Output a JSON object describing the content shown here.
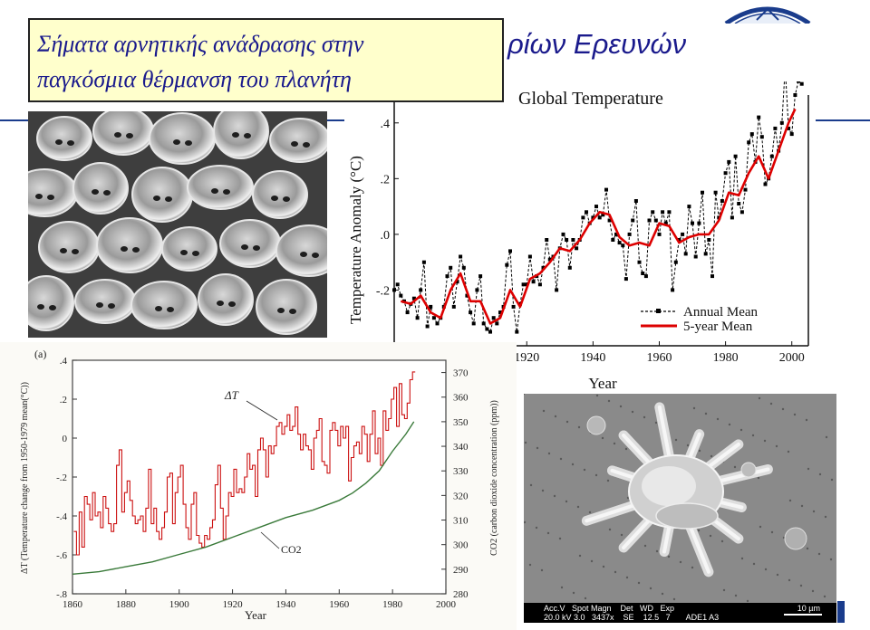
{
  "slide": {
    "title_line1": "Σήματα αρνητικής ανάδρασης στην",
    "title_line2": "παγκόσμια θέρμανση του πλανήτη",
    "header_fragment": "ρίων Ερευνών"
  },
  "photo_b_caption": {
    "row1": "Acc.V   Spot Magn    Det   WD   Exp",
    "row2": "20.0 kV 3.0   3437x    SE    12.5   7       ADE1 A3",
    "scale": "10 µm"
  },
  "colors": {
    "title_text": "#1a1a8c",
    "title_box_fill": "#ffffcc",
    "header_rule": "#1a3c8c",
    "annual_mean": "#000000",
    "five_year_mean": "#dd0000",
    "delta_t": "#cc1111",
    "co2": "#3a7a3a"
  },
  "chart_data": [
    {
      "type": "line",
      "title": "Global Temperature",
      "xlabel": "Year",
      "ylabel": "Temperature Anomaly (°C)",
      "xlim": [
        1880,
        2005
      ],
      "ylim": [
        -0.4,
        0.5
      ],
      "x_ticks": [
        1920,
        1940,
        1960,
        1980,
        2000
      ],
      "y_ticks": [
        ".4",
        ".2",
        ".0",
        "-.2"
      ],
      "grid": false,
      "legend_position": "bottom-right",
      "series": [
        {
          "name": "Annual Mean",
          "style": "dashed-square-markers",
          "x": [
            1880,
            1881,
            1882,
            1883,
            1884,
            1885,
            1886,
            1887,
            1888,
            1889,
            1890,
            1891,
            1892,
            1893,
            1894,
            1895,
            1896,
            1897,
            1898,
            1899,
            1900,
            1901,
            1902,
            1903,
            1904,
            1905,
            1906,
            1907,
            1908,
            1909,
            1910,
            1911,
            1912,
            1913,
            1914,
            1915,
            1916,
            1917,
            1918,
            1919,
            1920,
            1921,
            1922,
            1923,
            1924,
            1925,
            1926,
            1927,
            1928,
            1929,
            1930,
            1931,
            1932,
            1933,
            1934,
            1935,
            1936,
            1937,
            1938,
            1939,
            1940,
            1941,
            1942,
            1943,
            1944,
            1945,
            1946,
            1947,
            1948,
            1949,
            1950,
            1951,
            1952,
            1953,
            1954,
            1955,
            1956,
            1957,
            1958,
            1959,
            1960,
            1961,
            1962,
            1963,
            1964,
            1965,
            1966,
            1967,
            1968,
            1969,
            1970,
            1971,
            1972,
            1973,
            1974,
            1975,
            1976,
            1977,
            1978,
            1979,
            1980,
            1981,
            1982,
            1983,
            1984,
            1985,
            1986,
            1987,
            1988,
            1989,
            1990,
            1991,
            1992,
            1993,
            1994,
            1995,
            1996,
            1997,
            1998,
            1999,
            2000,
            2001,
            2002,
            2003
          ],
          "y": [
            -0.2,
            -0.18,
            -0.22,
            -0.24,
            -0.28,
            -0.25,
            -0.23,
            -0.3,
            -0.2,
            -0.1,
            -0.33,
            -0.26,
            -0.3,
            -0.32,
            -0.3,
            -0.26,
            -0.15,
            -0.12,
            -0.26,
            -0.17,
            -0.08,
            -0.12,
            -0.22,
            -0.28,
            -0.32,
            -0.2,
            -0.15,
            -0.32,
            -0.34,
            -0.35,
            -0.3,
            -0.32,
            -0.28,
            -0.26,
            -0.11,
            -0.06,
            -0.26,
            -0.35,
            -0.25,
            -0.18,
            -0.18,
            -0.08,
            -0.17,
            -0.15,
            -0.18,
            -0.12,
            -0.02,
            -0.09,
            -0.08,
            -0.2,
            -0.05,
            0.0,
            -0.02,
            -0.12,
            -0.02,
            -0.05,
            -0.02,
            0.06,
            0.08,
            0.04,
            0.06,
            0.1,
            0.06,
            0.07,
            0.16,
            0.05,
            -0.02,
            0.0,
            -0.03,
            -0.04,
            -0.16,
            0.0,
            0.05,
            0.12,
            -0.1,
            -0.14,
            -0.15,
            0.05,
            0.08,
            0.05,
            0.0,
            0.08,
            0.04,
            0.08,
            -0.2,
            -0.1,
            -0.02,
            0.0,
            -0.07,
            0.1,
            0.04,
            -0.08,
            0.04,
            0.15,
            -0.07,
            -0.02,
            -0.15,
            0.15,
            0.06,
            0.12,
            0.22,
            0.26,
            0.06,
            0.28,
            0.11,
            0.08,
            0.16,
            0.33,
            0.36,
            0.26,
            0.42,
            0.35,
            0.18,
            0.2,
            0.28,
            0.38,
            0.3,
            0.4,
            0.6,
            0.38,
            0.36,
            0.5,
            0.55,
            0.54
          ]
        },
        {
          "name": "5-year Mean",
          "style": "solid-thick",
          "x": [
            1882,
            1885,
            1888,
            1891,
            1894,
            1897,
            1900,
            1903,
            1906,
            1909,
            1912,
            1915,
            1918,
            1921,
            1924,
            1927,
            1930,
            1933,
            1936,
            1939,
            1942,
            1945,
            1948,
            1951,
            1954,
            1957,
            1960,
            1963,
            1966,
            1969,
            1972,
            1975,
            1978,
            1981,
            1984,
            1987,
            1990,
            1993,
            1996,
            1999,
            2001
          ],
          "y": [
            -0.24,
            -0.25,
            -0.22,
            -0.28,
            -0.3,
            -0.2,
            -0.14,
            -0.24,
            -0.24,
            -0.32,
            -0.3,
            -0.2,
            -0.26,
            -0.16,
            -0.14,
            -0.1,
            -0.05,
            -0.06,
            -0.02,
            0.04,
            0.08,
            0.07,
            -0.01,
            -0.04,
            -0.03,
            -0.04,
            0.04,
            0.03,
            -0.03,
            -0.01,
            0.0,
            0.0,
            0.05,
            0.15,
            0.14,
            0.22,
            0.28,
            0.2,
            0.3,
            0.4,
            0.45
          ]
        }
      ]
    },
    {
      "type": "line",
      "panel_label": "(a)",
      "xlabel": "Year",
      "ylabel": "ΔT (Temperature change from 1950-1979 mean(°C))",
      "ylabel_right": "CO2 (carbon dioxide concentration (ppm))",
      "xlim": [
        1860,
        2000
      ],
      "ylim": [
        -0.8,
        0.4
      ],
      "ylim_right": [
        280,
        375
      ],
      "x_ticks": [
        1860,
        1880,
        1900,
        1920,
        1940,
        1960,
        1980,
        2000
      ],
      "y_ticks": [
        ".4",
        ".2",
        "0",
        "-.2",
        "-.4",
        "-.6",
        "-.8"
      ],
      "y_ticks_right": [
        370,
        360,
        350,
        340,
        330,
        320,
        310,
        300,
        290,
        280
      ],
      "grid": false,
      "series": [
        {
          "name": "ΔT",
          "style": "step",
          "x": [
            1861,
            1862,
            1863,
            1864,
            1865,
            1866,
            1867,
            1868,
            1869,
            1870,
            1871,
            1872,
            1873,
            1874,
            1875,
            1876,
            1877,
            1878,
            1879,
            1880,
            1881,
            1882,
            1883,
            1884,
            1885,
            1886,
            1887,
            1888,
            1889,
            1890,
            1891,
            1892,
            1893,
            1894,
            1895,
            1896,
            1897,
            1898,
            1899,
            1900,
            1901,
            1902,
            1903,
            1904,
            1905,
            1906,
            1907,
            1908,
            1909,
            1910,
            1911,
            1912,
            1913,
            1914,
            1915,
            1916,
            1917,
            1918,
            1919,
            1920,
            1921,
            1922,
            1923,
            1924,
            1925,
            1926,
            1927,
            1928,
            1929,
            1930,
            1931,
            1932,
            1933,
            1934,
            1935,
            1936,
            1937,
            1938,
            1939,
            1940,
            1941,
            1942,
            1943,
            1944,
            1945,
            1946,
            1947,
            1948,
            1949,
            1950,
            1951,
            1952,
            1953,
            1954,
            1955,
            1956,
            1957,
            1958,
            1959,
            1960,
            1961,
            1962,
            1963,
            1964,
            1965,
            1966,
            1967,
            1968,
            1969,
            1970,
            1971,
            1972,
            1973,
            1974,
            1975,
            1976,
            1977,
            1978,
            1979,
            1980,
            1981,
            1982,
            1983,
            1984,
            1985,
            1986,
            1987,
            1988
          ],
          "y": [
            -0.48,
            -0.6,
            -0.38,
            -0.56,
            -0.3,
            -0.34,
            -0.42,
            -0.28,
            -0.4,
            -0.38,
            -0.46,
            -0.3,
            -0.36,
            -0.44,
            -0.48,
            -0.44,
            -0.14,
            -0.06,
            -0.38,
            -0.28,
            -0.22,
            -0.32,
            -0.4,
            -0.44,
            -0.42,
            -0.4,
            -0.48,
            -0.36,
            -0.16,
            -0.44,
            -0.36,
            -0.48,
            -0.52,
            -0.46,
            -0.38,
            -0.2,
            -0.18,
            -0.44,
            -0.28,
            -0.2,
            -0.14,
            -0.34,
            -0.46,
            -0.52,
            -0.34,
            -0.28,
            -0.5,
            -0.54,
            -0.56,
            -0.5,
            -0.52,
            -0.46,
            -0.42,
            -0.24,
            -0.14,
            -0.36,
            -0.52,
            -0.4,
            -0.28,
            -0.3,
            -0.16,
            -0.28,
            -0.26,
            -0.28,
            -0.2,
            -0.08,
            -0.16,
            -0.14,
            -0.3,
            -0.06,
            0.0,
            -0.06,
            -0.2,
            -0.04,
            -0.08,
            -0.04,
            0.06,
            0.08,
            0.02,
            0.06,
            0.12,
            0.04,
            0.06,
            0.16,
            0.02,
            -0.06,
            0.02,
            -0.04,
            -0.06,
            -0.16,
            0.0,
            0.04,
            0.1,
            -0.12,
            -0.14,
            -0.18,
            0.04,
            0.08,
            0.04,
            -0.04,
            0.06,
            0.0,
            0.06,
            -0.22,
            -0.1,
            -0.04,
            -0.02,
            -0.08,
            0.06,
            0.02,
            -0.12,
            0.02,
            0.14,
            -0.08,
            0.0,
            -0.14,
            0.14,
            0.04,
            0.1,
            0.2,
            0.26,
            0.06,
            0.28,
            0.12,
            0.1,
            0.18,
            0.3,
            0.34
          ]
        },
        {
          "name": "CO2",
          "style": "smooth",
          "axis": "right",
          "x": [
            1860,
            1870,
            1880,
            1890,
            1900,
            1910,
            1920,
            1930,
            1940,
            1950,
            1960,
            1965,
            1970,
            1975,
            1980,
            1985,
            1988
          ],
          "y": [
            288,
            289,
            291,
            293,
            296,
            299,
            303,
            307,
            311,
            314,
            318,
            321,
            325,
            330,
            338,
            345,
            350
          ]
        }
      ]
    }
  ]
}
